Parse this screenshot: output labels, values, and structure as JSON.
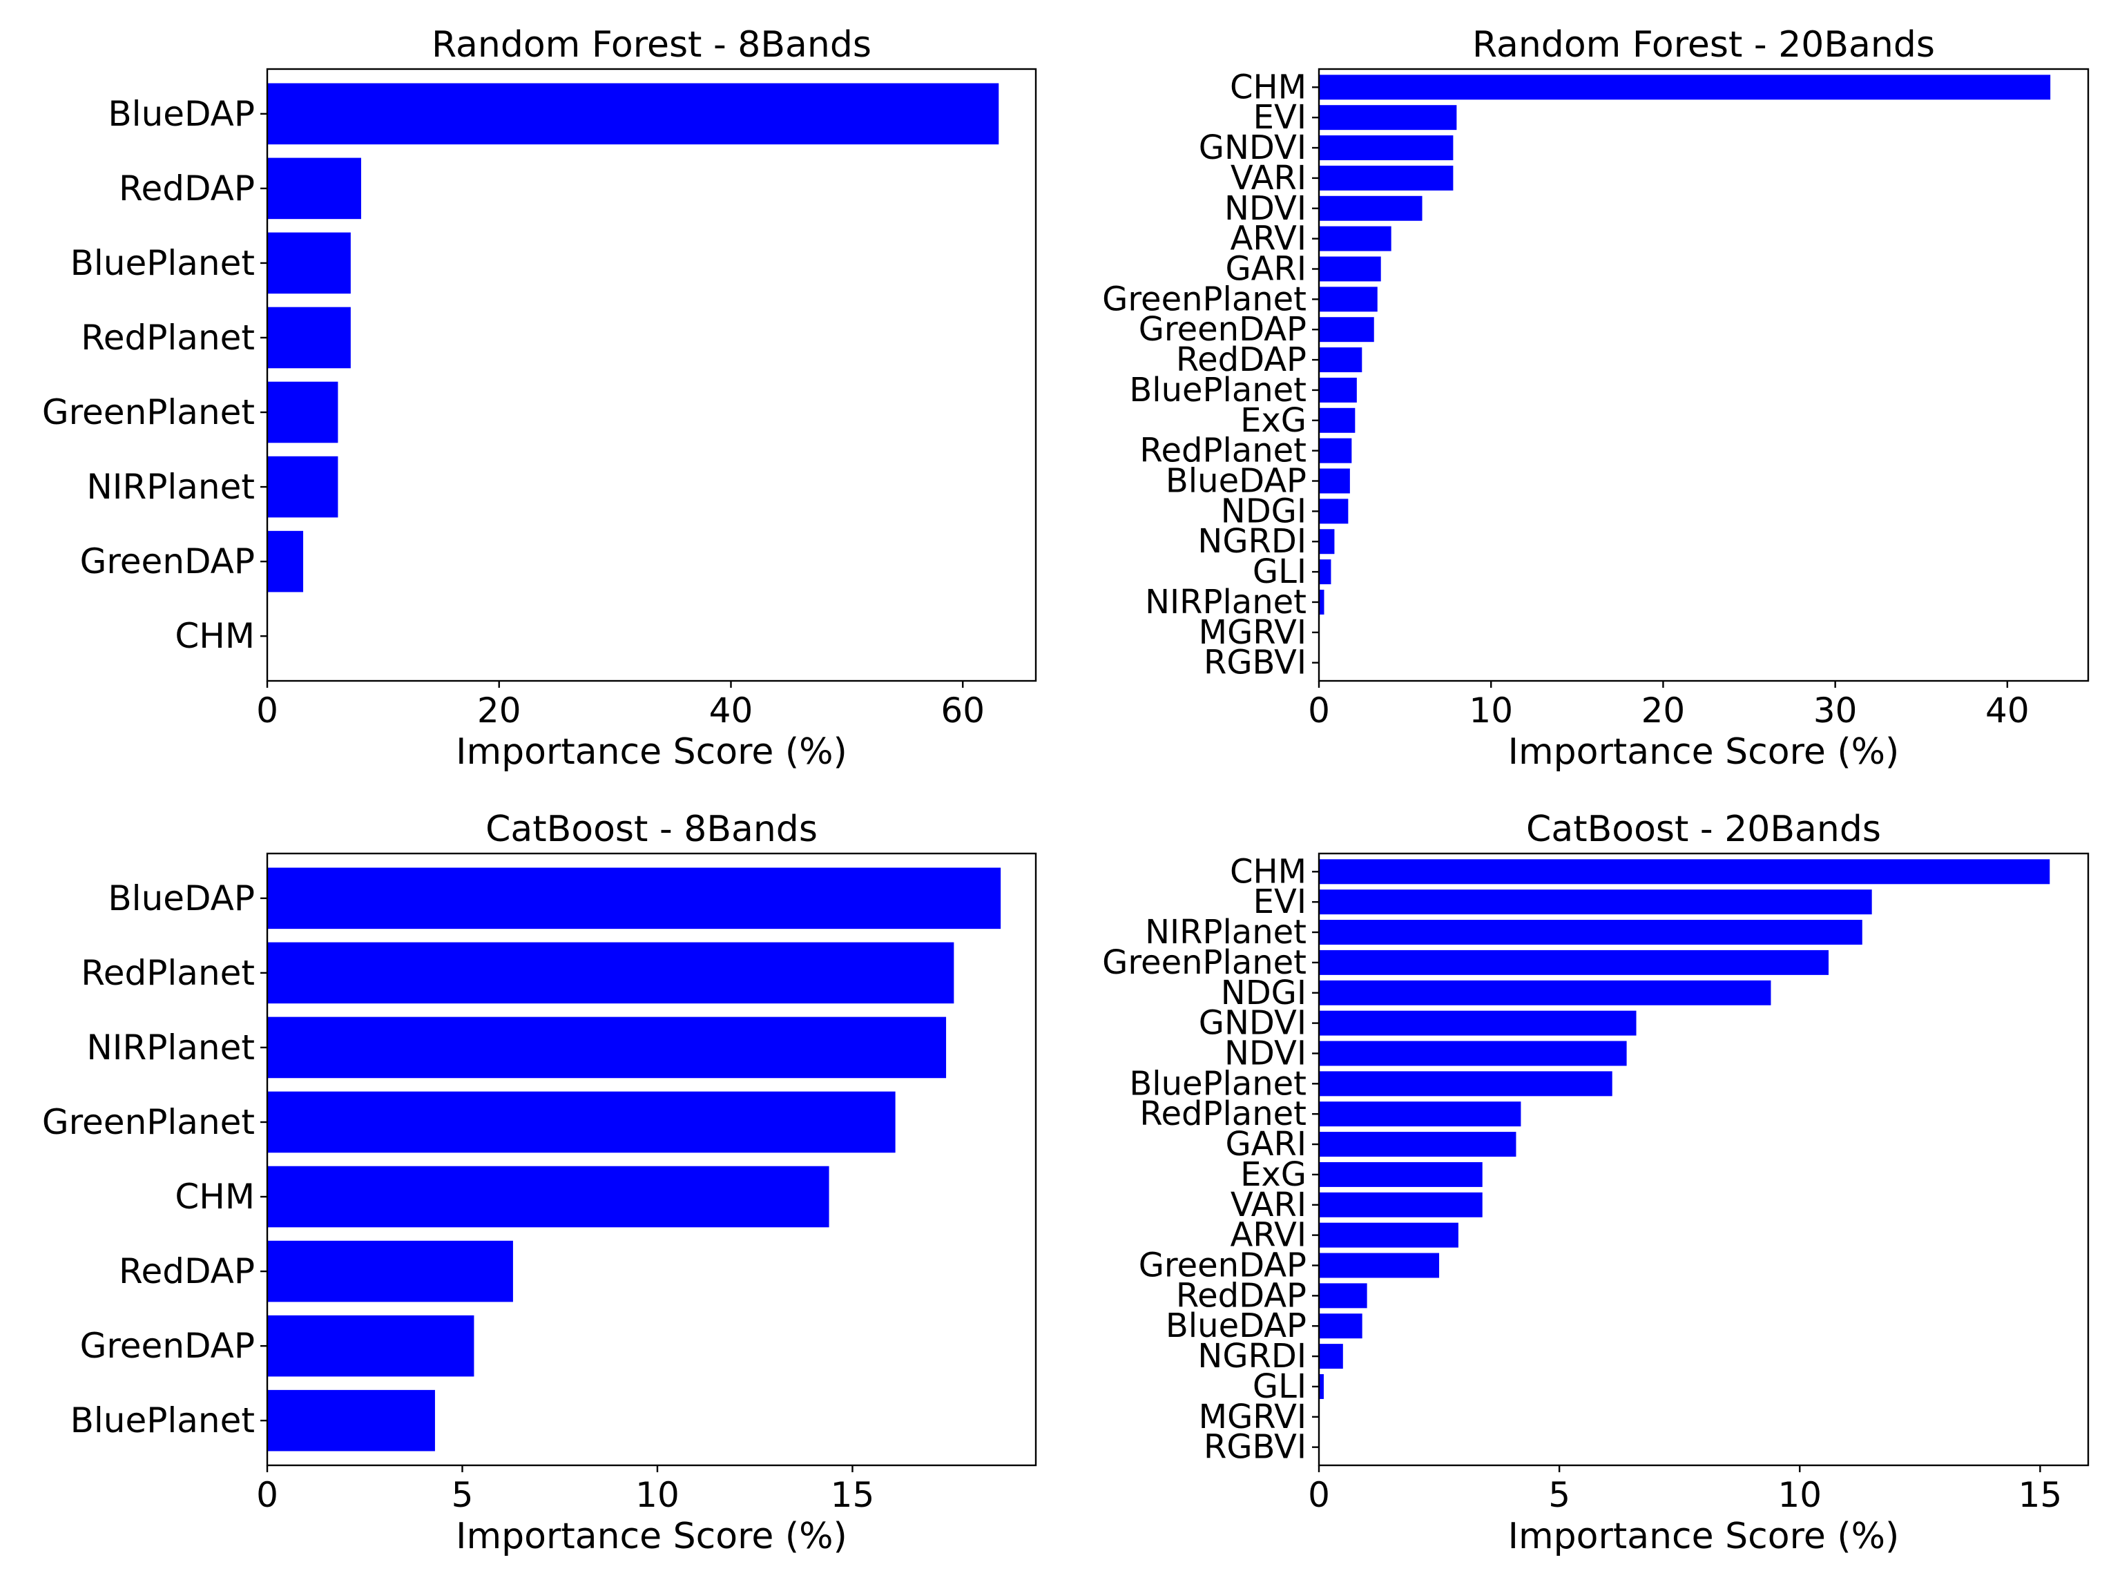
{
  "chart_data": [
    {
      "type": "bar",
      "orientation": "horizontal",
      "title": "Random Forest - 8Bands",
      "xlabel": "Importance Score (%)",
      "ylabel": "",
      "xlim": [
        0,
        66.3
      ],
      "xticks": [
        0,
        20,
        40,
        60
      ],
      "categories": [
        "BlueDAP",
        "RedDAP",
        "BluePlanet",
        "RedPlanet",
        "GreenPlanet",
        "NIRPlanet",
        "GreenDAP",
        "CHM"
      ],
      "values": [
        63.1,
        8.1,
        7.2,
        7.2,
        6.1,
        6.1,
        3.1,
        0.0
      ],
      "bar_color": "#0000ff"
    },
    {
      "type": "bar",
      "orientation": "horizontal",
      "title": "Random Forest - 20Bands",
      "xlabel": "Importance Score (%)",
      "ylabel": "",
      "xlim": [
        0,
        44.7
      ],
      "xticks": [
        0,
        10,
        20,
        30,
        40
      ],
      "categories": [
        "CHM",
        "EVI",
        "GNDVI",
        "VARI",
        "NDVI",
        "ARVI",
        "GARI",
        "GreenPlanet",
        "GreenDAP",
        "RedDAP",
        "BluePlanet",
        "ExG",
        "RedPlanet",
        "BlueDAP",
        "NDGI",
        "NGRDI",
        "GLI",
        "NIRPlanet",
        "MGRVI",
        "RGBVI"
      ],
      "values": [
        42.5,
        8.0,
        7.8,
        7.8,
        6.0,
        4.2,
        3.6,
        3.4,
        3.2,
        2.5,
        2.2,
        2.1,
        1.9,
        1.8,
        1.7,
        0.9,
        0.7,
        0.3,
        0.0,
        0.0
      ],
      "bar_color": "#0000ff"
    },
    {
      "type": "bar",
      "orientation": "horizontal",
      "title": "CatBoost - 8Bands",
      "xlabel": "Importance Score (%)",
      "ylabel": "",
      "xlim": [
        0,
        19.7
      ],
      "xticks": [
        0,
        5,
        10,
        15
      ],
      "categories": [
        "BlueDAP",
        "RedPlanet",
        "NIRPlanet",
        "GreenPlanet",
        "CHM",
        "RedDAP",
        "GreenDAP",
        "BluePlanet"
      ],
      "values": [
        18.8,
        17.6,
        17.4,
        16.1,
        14.4,
        6.3,
        5.3,
        4.3
      ],
      "bar_color": "#0000ff"
    },
    {
      "type": "bar",
      "orientation": "horizontal",
      "title": "CatBoost - 20Bands",
      "xlabel": "Importance Score (%)",
      "ylabel": "",
      "xlim": [
        0,
        16.0
      ],
      "xticks": [
        0,
        5,
        10,
        15
      ],
      "categories": [
        "CHM",
        "EVI",
        "NIRPlanet",
        "GreenPlanet",
        "NDGI",
        "GNDVI",
        "NDVI",
        "BluePlanet",
        "RedPlanet",
        "GARI",
        "ExG",
        "VARI",
        "ARVI",
        "GreenDAP",
        "RedDAP",
        "BlueDAP",
        "NGRDI",
        "GLI",
        "MGRVI",
        "RGBVI"
      ],
      "values": [
        15.2,
        11.5,
        11.3,
        10.6,
        9.4,
        6.6,
        6.4,
        6.1,
        4.2,
        4.1,
        3.4,
        3.4,
        2.9,
        2.5,
        1.0,
        0.9,
        0.5,
        0.1,
        0.0,
        0.0
      ],
      "bar_color": "#0000ff"
    }
  ]
}
